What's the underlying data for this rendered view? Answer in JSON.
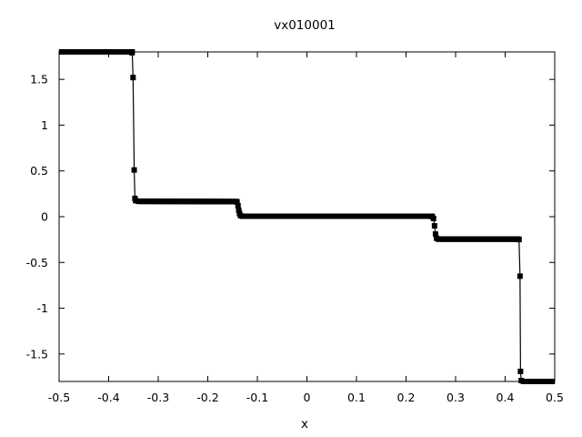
{
  "chart_data": {
    "type": "line",
    "title": "vx010001",
    "xlabel": "x",
    "ylabel": "",
    "xlim": [
      -0.5,
      0.5
    ],
    "ylim": [
      -1.8,
      1.8
    ],
    "xticks": [
      -0.5,
      -0.4,
      -0.3,
      -0.2,
      -0.1,
      0,
      0.1,
      0.2,
      0.3,
      0.4,
      0.5
    ],
    "xtick_labels": [
      "-0.5",
      "-0.4",
      "-0.3",
      "-0.2",
      "-0.1",
      "0",
      "0.1",
      "0.2",
      "0.3",
      "0.4",
      "0.5"
    ],
    "yticks": [
      1.5,
      1,
      0.5,
      0,
      -0.5,
      -1,
      -1.5
    ],
    "ytick_labels": [
      "1.5",
      "1",
      "0.5",
      "0",
      "-0.5",
      "-1",
      "-1.5"
    ],
    "grid": false,
    "legend": "none",
    "line_color": "#000000",
    "marker": "square",
    "segments": [
      {
        "x_start": -0.495,
        "x_end": -0.3525,
        "y_start": 1.8,
        "y_end": 1.8
      },
      {
        "x_start": -0.34,
        "x_end": -0.142,
        "y_start": 0.168,
        "y_end": 0.165
      },
      {
        "x_start": -0.13,
        "x_end": 0.252,
        "y_start": 0.005,
        "y_end": 0.005
      },
      {
        "x_start": 0.265,
        "x_end": 0.427,
        "y_start": -0.245,
        "y_end": -0.245
      },
      {
        "x_start": 0.437,
        "x_end": 0.495,
        "y_start": -1.8,
        "y_end": -1.8
      }
    ],
    "transition_points": [
      {
        "x": -0.353,
        "y": 1.79
      },
      {
        "x": -0.3508,
        "y": 1.52
      },
      {
        "x": -0.3485,
        "y": 0.51
      },
      {
        "x": -0.347,
        "y": 0.2
      },
      {
        "x": -0.3455,
        "y": 0.175
      },
      {
        "x": -0.141,
        "y": 0.16
      },
      {
        "x": -0.139,
        "y": 0.12
      },
      {
        "x": -0.1375,
        "y": 0.07
      },
      {
        "x": -0.136,
        "y": 0.035
      },
      {
        "x": -0.134,
        "y": 0.012
      },
      {
        "x": 0.253,
        "y": 0.0
      },
      {
        "x": 0.2555,
        "y": -0.02
      },
      {
        "x": 0.2575,
        "y": -0.1
      },
      {
        "x": 0.2595,
        "y": -0.19
      },
      {
        "x": 0.2615,
        "y": -0.235
      },
      {
        "x": 0.428,
        "y": -0.25
      },
      {
        "x": 0.43,
        "y": -0.65
      },
      {
        "x": 0.431,
        "y": -1.69
      },
      {
        "x": 0.4325,
        "y": -1.79
      }
    ],
    "marker_step": 0.0025
  }
}
